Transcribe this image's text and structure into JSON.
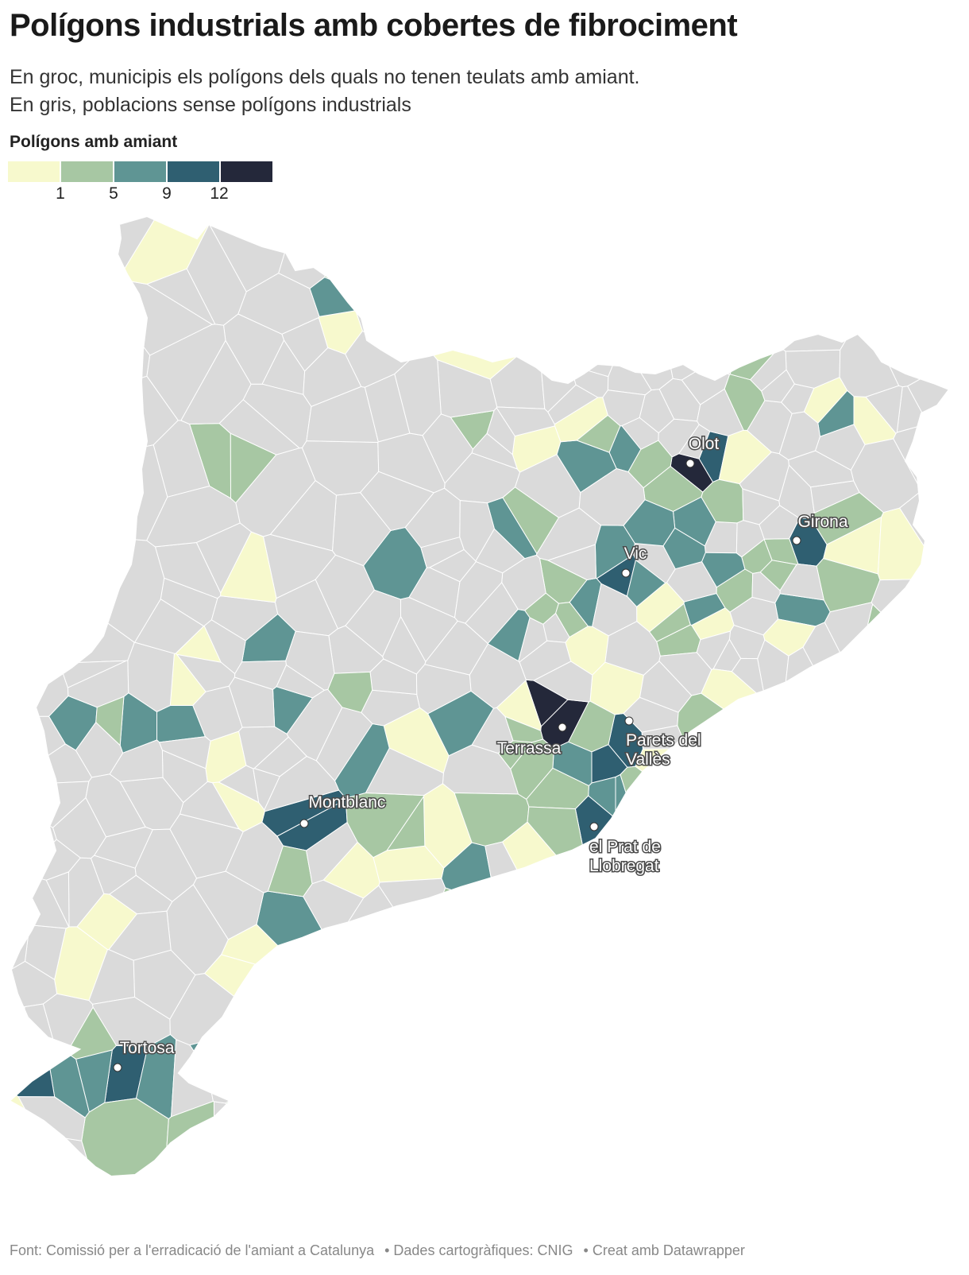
{
  "title": "Polígons industrials amb cobertes de fibrociment",
  "subtitle": [
    "En groc, municipis els polígons dels quals no tenen teulats amb amiant.",
    "En gris, poblacions sense polígons industrials"
  ],
  "legend": {
    "title": "Polígons amb amiant",
    "colors": [
      "#f7f9cd",
      "#a7c7a3",
      "#5f9594",
      "#2f5f71",
      "#24283a"
    ],
    "ticks": [
      "1",
      "5",
      "9",
      "12"
    ]
  },
  "colors": {
    "no_industry": "#dadada",
    "border": "#ffffff",
    "marker": "#ffffff"
  },
  "cities": [
    {
      "name": "Olot",
      "class": 5
    },
    {
      "name": "Girona",
      "class": 4
    },
    {
      "name": "Vic",
      "class": 4
    },
    {
      "name": "Terrassa",
      "class": 5
    },
    {
      "name": "Parets del Vallès",
      "class": 4
    },
    {
      "name": "Montblanc",
      "class": 4
    },
    {
      "name": "el Prat de Llobregat",
      "class": 4
    },
    {
      "name": "Tortosa",
      "class": 4
    }
  ],
  "footer": {
    "source": "Font: Comissió per a l'erradicació de l'amiant a Catalunya",
    "cartography": "• Dades cartogràfiques: CNIG",
    "credit": "• Creat amb Datawrapper"
  }
}
